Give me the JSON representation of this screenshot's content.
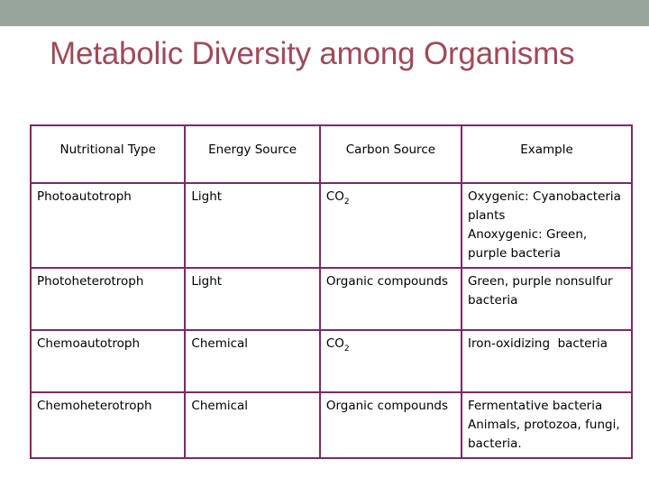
{
  "slide": {
    "title": "Metabolic Diversity among Organisms"
  },
  "table": {
    "headers": [
      "Nutritional Type",
      "Energy Source",
      "Carbon Source",
      "Example"
    ],
    "rows": [
      {
        "type": "Photoautotroph",
        "energy": "Light",
        "carbon": "CO",
        "carbon_sub": "2",
        "example": [
          "Oxygenic: Cyanobacteria plants",
          "Anoxygenic: Green, purple bacteria"
        ]
      },
      {
        "type": "Photoheterotroph",
        "energy": "Light",
        "carbon": "Organic compounds",
        "carbon_sub": "",
        "example": [
          "Green, purple nonsulfur bacteria"
        ]
      },
      {
        "type": "Chemoautotroph",
        "energy": "Chemical",
        "carbon": "CO",
        "carbon_sub": "2",
        "example": [
          "Iron-oxidizing  bacteria"
        ]
      },
      {
        "type": "Chemoheterotroph",
        "energy": "Chemical",
        "carbon": "Organic compounds",
        "carbon_sub": "",
        "example": [
          "Fermentative bacteria",
          "Animals, protozoa, fungi, bacteria."
        ]
      }
    ]
  },
  "colors": {
    "top_bar": "#97a59a",
    "title": "#a0495a",
    "table_border": "#7b2a63"
  }
}
